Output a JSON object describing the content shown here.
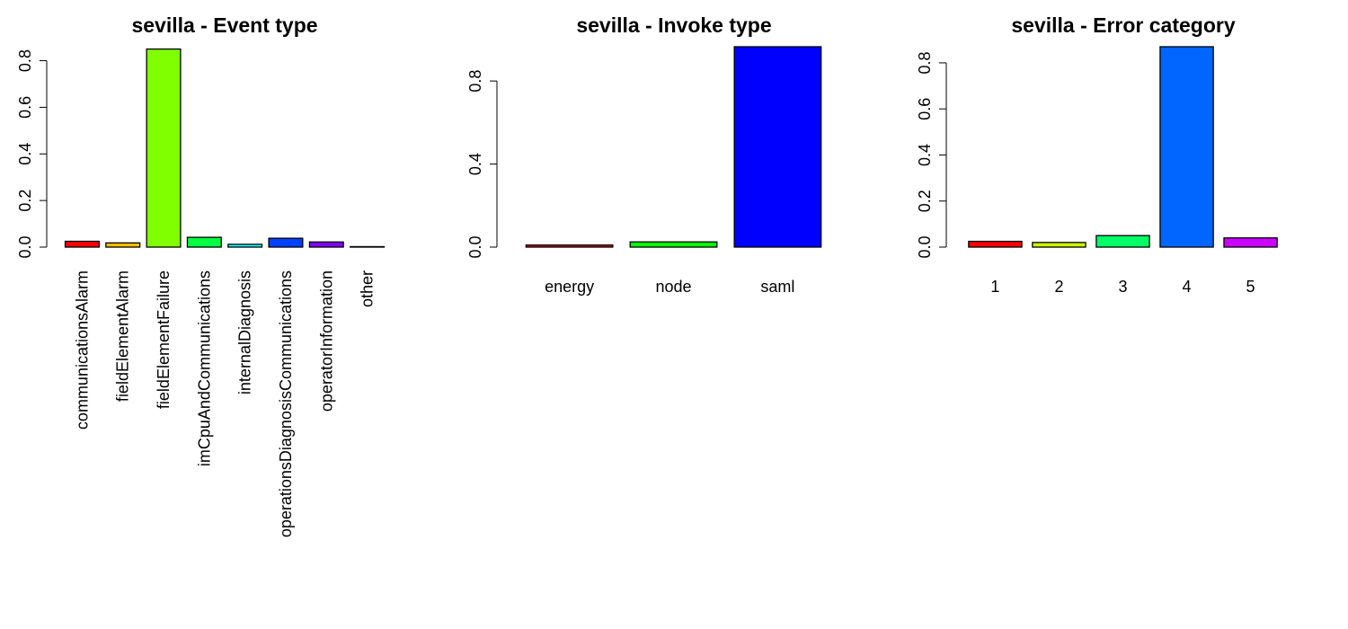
{
  "chart_data": [
    {
      "type": "bar",
      "title": "sevilla - Event type",
      "categories": [
        "communicationsAlarm",
        "fieldElementAlarm",
        "fieldElementFailure",
        "imCpuAndCommunications",
        "internalDiagnosis",
        "operationsDiagnosisCommunications",
        "operatorInformation",
        "other"
      ],
      "values": [
        0.025,
        0.018,
        0.85,
        0.042,
        0.012,
        0.038,
        0.022,
        0.002
      ],
      "colors": [
        "#ff0000",
        "#ffbf00",
        "#80ff00",
        "#00ff40",
        "#00ffff",
        "#0040ff",
        "#8000ff",
        "#ff00bf"
      ],
      "yticks": [
        0.0,
        0.2,
        0.4,
        0.6,
        0.8
      ],
      "ytick_labels": [
        "0.0",
        "0.2",
        "0.4",
        "0.6",
        "0.8"
      ],
      "ylim": [
        0,
        0.86
      ],
      "xlabel_orientation": "vertical",
      "xlabel": "",
      "ylabel": ""
    },
    {
      "type": "bar",
      "title": "sevilla - Invoke type",
      "categories": [
        "energy",
        "node",
        "saml"
      ],
      "values": [
        0.01,
        0.025,
        0.965
      ],
      "colors": [
        "#ff0000",
        "#00ff00",
        "#0000ff"
      ],
      "yticks": [
        0.0,
        0.4,
        0.8
      ],
      "ytick_labels": [
        "0.0",
        "0.4",
        "0.8"
      ],
      "ylim": [
        0,
        0.965
      ],
      "xlabel_orientation": "horizontal",
      "xlabel": "",
      "ylabel": ""
    },
    {
      "type": "bar",
      "title": "sevilla - Error category",
      "categories": [
        "1",
        "2",
        "3",
        "4",
        "5"
      ],
      "values": [
        0.025,
        0.02,
        0.05,
        0.87,
        0.04
      ],
      "colors": [
        "#ff0000",
        "#ccff00",
        "#00ff66",
        "#0066ff",
        "#cc00ff"
      ],
      "yticks": [
        0.0,
        0.2,
        0.4,
        0.6,
        0.8
      ],
      "ytick_labels": [
        "0.0",
        "0.2",
        "0.4",
        "0.6",
        "0.8"
      ],
      "ylim": [
        0,
        0.87
      ],
      "xlabel_orientation": "horizontal",
      "xlabel": "",
      "ylabel": ""
    }
  ]
}
